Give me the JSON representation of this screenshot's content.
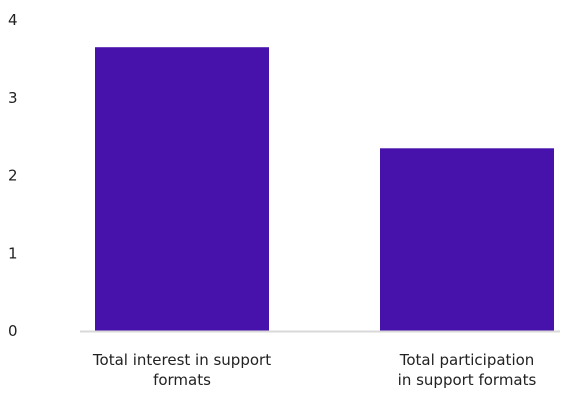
{
  "chart_data": {
    "type": "bar",
    "title": "",
    "xlabel": "",
    "ylabel": "",
    "ylim": [
      0,
      4
    ],
    "yticks": [
      "0",
      "1",
      "2",
      "3",
      "4"
    ],
    "grid": false,
    "legend": "none",
    "categories": [
      [
        "Total interest in support",
        "formats"
      ],
      [
        "Total participation",
        "in support formats"
      ]
    ],
    "values": [
      3.65,
      2.35
    ],
    "colors": {
      "bar": "#4712AB",
      "baseline": "#D9D9D9",
      "text": "#222222"
    }
  }
}
